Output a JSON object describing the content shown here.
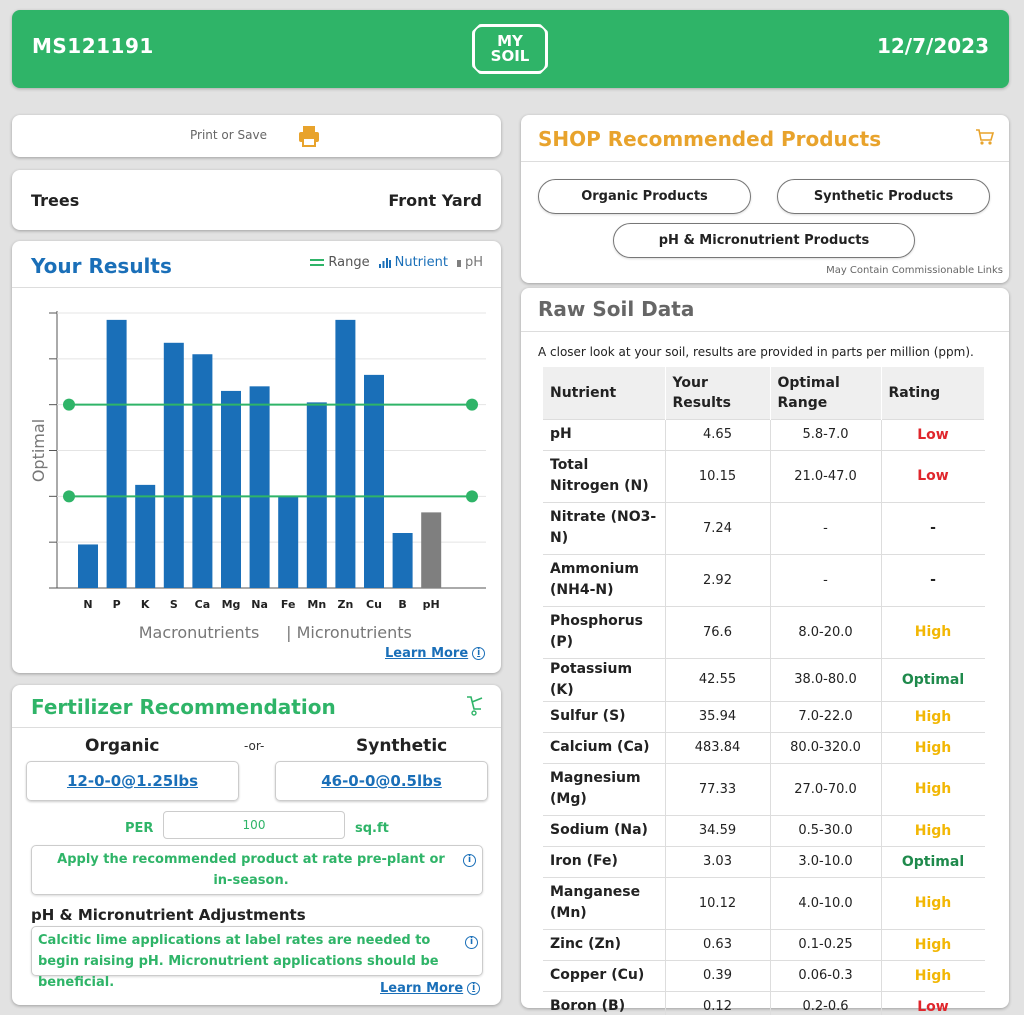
{
  "header": {
    "sample_id": "MS121191",
    "logo_top": "MY",
    "logo_bottom": "SOIL",
    "date": "12/7/2023"
  },
  "print": {
    "label": "Print or Save",
    "icon": "printer-icon"
  },
  "location": {
    "plant": "Trees",
    "area": "Front Yard"
  },
  "results": {
    "title": "Your Results",
    "legend": {
      "range": "Range",
      "nutrient": "Nutrient",
      "ph": "pH"
    },
    "learn_more": "Learn More",
    "colors": {
      "nutrient": "#1a6fb8",
      "ph": "#7f7f7f",
      "range": "#2fb468"
    }
  },
  "chart_data": {
    "type": "bar",
    "categories": [
      "N",
      "P",
      "K",
      "S",
      "Ca",
      "Mg",
      "Na",
      "Fe",
      "Mn",
      "Zn",
      "Cu",
      "B",
      "pH"
    ],
    "values": [
      0.19,
      1.17,
      0.45,
      1.07,
      1.02,
      0.86,
      0.88,
      0.4,
      0.81,
      1.17,
      0.93,
      0.24,
      0.33
    ],
    "ylabel": "Optimal",
    "optimal_band": [
      0.4,
      0.8
    ],
    "ylim": [
      0,
      1.2
    ],
    "group_labels": [
      "Macronutrients",
      "| Micronutrients"
    ]
  },
  "fertilizer": {
    "title": "Fertilizer Recommendation",
    "organic_label": "Organic",
    "or_label": "-or-",
    "synthetic_label": "Synthetic",
    "organic_value": "12-0-0@1.25lbs",
    "synthetic_value": "46-0-0@0.5lbs",
    "per_label": "PER",
    "per_value": "100",
    "unit": "sq.ft",
    "apply_note": "Apply the recommended product at rate pre-plant or in-season.",
    "adjust_heading": "pH & Micronutrient Adjustments",
    "adjust_note": "Calcitic lime applications at label rates are needed to begin raising pH. Micronutrient applications should be beneficial.",
    "learn_more": "Learn More"
  },
  "shop": {
    "title": "SHOP Recommended Products",
    "organic": "Organic Products",
    "synthetic": "Synthetic Products",
    "micro": "pH & Micronutrient Products",
    "disclaimer": "May Contain Commissionable Links"
  },
  "raw": {
    "title": "Raw Soil Data",
    "intro": "A closer look at your soil, results are provided in parts per million (ppm).",
    "headers": [
      "Nutrient",
      "Your Results",
      "Optimal Range",
      "Rating"
    ],
    "rows": [
      {
        "nutrient": "pH",
        "result": "4.65",
        "range": "5.8-7.0",
        "rating": "Low"
      },
      {
        "nutrient": "Total Nitrogen (N)",
        "result": "10.15",
        "range": "21.0-47.0",
        "rating": "Low"
      },
      {
        "nutrient": "Nitrate (NO3-N)",
        "result": "7.24",
        "range": "-",
        "rating": "-"
      },
      {
        "nutrient": "Ammonium (NH4-N)",
        "result": "2.92",
        "range": "-",
        "rating": "-"
      },
      {
        "nutrient": "Phosphorus (P)",
        "result": "76.6",
        "range": "8.0-20.0",
        "rating": "High"
      },
      {
        "nutrient": "Potassium (K)",
        "result": "42.55",
        "range": "38.0-80.0",
        "rating": "Optimal"
      },
      {
        "nutrient": "Sulfur (S)",
        "result": "35.94",
        "range": "7.0-22.0",
        "rating": "High"
      },
      {
        "nutrient": "Calcium (Ca)",
        "result": "483.84",
        "range": "80.0-320.0",
        "rating": "High"
      },
      {
        "nutrient": "Magnesium (Mg)",
        "result": "77.33",
        "range": "27.0-70.0",
        "rating": "High"
      },
      {
        "nutrient": "Sodium (Na)",
        "result": "34.59",
        "range": "0.5-30.0",
        "rating": "High"
      },
      {
        "nutrient": "Iron (Fe)",
        "result": "3.03",
        "range": "3.0-10.0",
        "rating": "Optimal"
      },
      {
        "nutrient": "Manganese (Mn)",
        "result": "10.12",
        "range": "4.0-10.0",
        "rating": "High"
      },
      {
        "nutrient": "Zinc (Zn)",
        "result": "0.63",
        "range": "0.1-0.25",
        "rating": "High"
      },
      {
        "nutrient": "Copper (Cu)",
        "result": "0.39",
        "range": "0.06-0.3",
        "rating": "High"
      },
      {
        "nutrient": "Boron (B)",
        "result": "0.12",
        "range": "0.2-0.6",
        "rating": "Low"
      }
    ],
    "rating_colors": {
      "Low": "#e0262c",
      "High": "#f2b705",
      "Optimal": "#1f8a4c",
      "-": "#222222"
    }
  }
}
